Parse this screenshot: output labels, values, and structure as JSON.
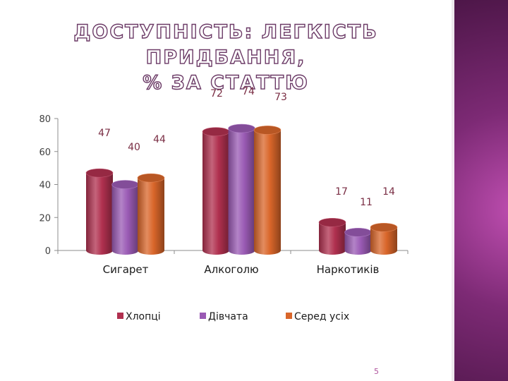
{
  "title_line1": "ДОСТУПНІСТЬ:  ЛЕГКІСТЬ ПРИДБАННЯ,",
  "title_line2": "% ЗА СТАТТЮ",
  "page_number": "5",
  "colors": {
    "Хлопці": "#b0304f",
    "Дівчата": "#9a5ab4",
    "Серед усіх": "#d9662a",
    "label_text": "#7a2e44",
    "tick_text": "#404040"
  },
  "chart_data": {
    "type": "bar",
    "categories": [
      "Сигарет",
      "Алкоголю",
      "Наркотиків"
    ],
    "series": [
      {
        "name": "Хлопці",
        "values": [
          47,
          72,
          17
        ]
      },
      {
        "name": "Дівчата",
        "values": [
          40,
          74,
          11
        ]
      },
      {
        "name": "Серед усіх",
        "values": [
          44,
          73,
          14
        ]
      }
    ],
    "yticks": [
      "0",
      "20",
      "40",
      "60",
      "80"
    ],
    "ylim": [
      0,
      80
    ],
    "grid": false,
    "legend_position": "bottom",
    "style": "3d-cylinder"
  }
}
